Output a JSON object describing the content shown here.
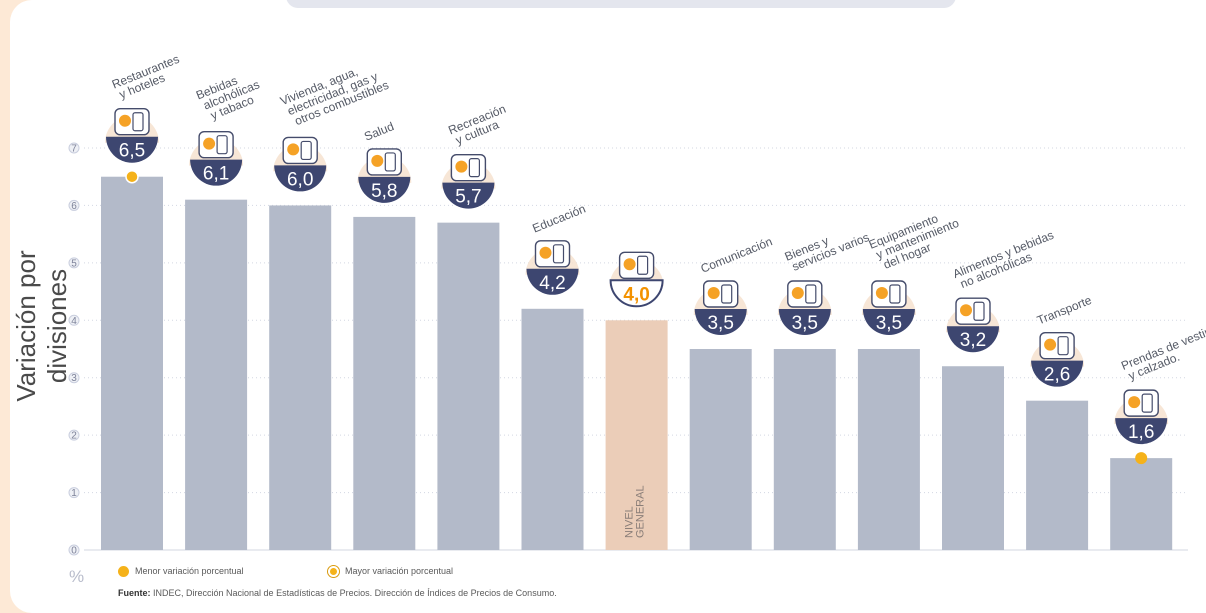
{
  "chart_data": {
    "type": "bar",
    "ylabel": "Variación por divisiones",
    "unit_label": "%",
    "ylim": [
      0,
      7
    ],
    "yticks": [
      0,
      1,
      2,
      3,
      4,
      5,
      6,
      7
    ],
    "grid": true,
    "bars": [
      {
        "lines": [
          "Restaurantes",
          "y hoteles"
        ],
        "value": 6.5,
        "label": "6,5",
        "marker": "max"
      },
      {
        "lines": [
          "Bebidas",
          "alcohólicas",
          "y tabaco"
        ],
        "value": 6.1,
        "label": "6,1"
      },
      {
        "lines": [
          "Vivienda, agua,",
          "electricidad, gas y",
          "otros combustibles"
        ],
        "value": 6.0,
        "label": "6,0"
      },
      {
        "lines": [
          "Salud"
        ],
        "value": 5.8,
        "label": "5,8"
      },
      {
        "lines": [
          "Recreación",
          "y cultura"
        ],
        "value": 5.7,
        "label": "5,7"
      },
      {
        "lines": [
          "Educación"
        ],
        "value": 4.2,
        "label": "4,2"
      },
      {
        "lines": [],
        "value": 4.0,
        "label": "4,0",
        "highlight": true,
        "bar_text": [
          "NIVEL",
          "GENERAL"
        ]
      },
      {
        "lines": [
          "Comunicación"
        ],
        "value": 3.5,
        "label": "3,5"
      },
      {
        "lines": [
          "Bienes y",
          "servicios varios"
        ],
        "value": 3.5,
        "label": "3,5"
      },
      {
        "lines": [
          "Equipamiento",
          "y mantenimiento",
          "del hogar"
        ],
        "value": 3.5,
        "label": "3,5"
      },
      {
        "lines": [
          "Alimentos y bebidas",
          "no alcohólicas"
        ],
        "value": 3.2,
        "label": "3,2"
      },
      {
        "lines": [
          "Transporte"
        ],
        "value": 2.6,
        "label": "2,6"
      },
      {
        "lines": [
          "Prendas de vestir",
          "y calzado."
        ],
        "value": 1.6,
        "label": "1,6",
        "marker": "min"
      }
    ],
    "colors": {
      "bar": "#b3bac9",
      "highlight_bar": "#ebcdb8",
      "badge": "#3d4670",
      "marker": "#f5b21a",
      "accent": "#f39200"
    }
  },
  "legend": {
    "min_label": "Menor variación porcentual",
    "max_label": "Mayor variación porcentual"
  },
  "source": {
    "label": "Fuente:",
    "text": "INDEC, Dirección Nacional de Estadísticas de Precios. Dirección de Índices de Precios de Consumo."
  },
  "icons": [
    "restaurant-icon",
    "bottle-icon",
    "lightbulb-icon",
    "health-icon",
    "umbrella-icon",
    "book-icon",
    "basket-icon",
    "phone-icon",
    "comb-scissors-icon",
    "oven-icon",
    "chicken-icon",
    "bus-card-icon",
    "shirt-icon"
  ]
}
